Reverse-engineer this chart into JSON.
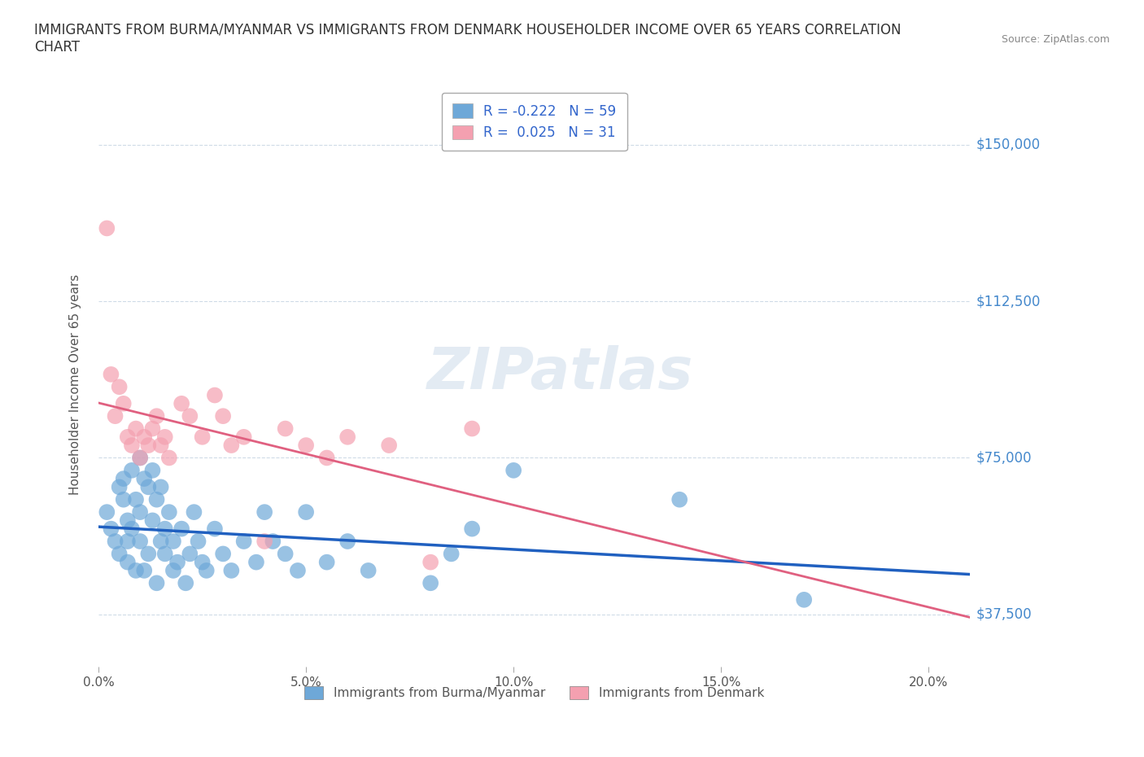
{
  "title": "IMMIGRANTS FROM BURMA/MYANMAR VS IMMIGRANTS FROM DENMARK HOUSEHOLDER INCOME OVER 65 YEARS CORRELATION\nCHART",
  "source": "Source: ZipAtlas.com",
  "xlabel": "",
  "ylabel": "Householder Income Over 65 years",
  "series1_label": "Immigrants from Burma/Myanmar",
  "series2_label": "Immigrants from Denmark",
  "series1_color": "#6ea8d8",
  "series2_color": "#f4a0b0",
  "series1_line_color": "#2060c0",
  "series2_line_color": "#e06080",
  "R1": -0.222,
  "N1": 59,
  "R2": 0.025,
  "N2": 31,
  "xlim": [
    0.0,
    0.21
  ],
  "ylim": [
    25000,
    160000
  ],
  "yticks": [
    37500,
    75000,
    112500,
    150000
  ],
  "xticks": [
    0.0,
    0.05,
    0.1,
    0.15,
    0.2
  ],
  "watermark": "ZIPatlas",
  "series1_x": [
    0.002,
    0.003,
    0.004,
    0.005,
    0.005,
    0.006,
    0.006,
    0.007,
    0.007,
    0.007,
    0.008,
    0.008,
    0.009,
    0.009,
    0.01,
    0.01,
    0.01,
    0.011,
    0.011,
    0.012,
    0.012,
    0.013,
    0.013,
    0.014,
    0.014,
    0.015,
    0.015,
    0.016,
    0.016,
    0.017,
    0.018,
    0.018,
    0.019,
    0.02,
    0.021,
    0.022,
    0.023,
    0.024,
    0.025,
    0.026,
    0.028,
    0.03,
    0.032,
    0.035,
    0.038,
    0.04,
    0.042,
    0.045,
    0.048,
    0.05,
    0.055,
    0.06,
    0.065,
    0.08,
    0.085,
    0.09,
    0.1,
    0.14,
    0.17
  ],
  "series1_y": [
    62000,
    58000,
    55000,
    68000,
    52000,
    70000,
    65000,
    60000,
    55000,
    50000,
    72000,
    58000,
    65000,
    48000,
    75000,
    62000,
    55000,
    70000,
    48000,
    68000,
    52000,
    72000,
    60000,
    65000,
    45000,
    68000,
    55000,
    58000,
    52000,
    62000,
    48000,
    55000,
    50000,
    58000,
    45000,
    52000,
    62000,
    55000,
    50000,
    48000,
    58000,
    52000,
    48000,
    55000,
    50000,
    62000,
    55000,
    52000,
    48000,
    62000,
    50000,
    55000,
    48000,
    45000,
    52000,
    58000,
    72000,
    65000,
    41000
  ],
  "series2_x": [
    0.002,
    0.003,
    0.004,
    0.005,
    0.006,
    0.007,
    0.008,
    0.009,
    0.01,
    0.011,
    0.012,
    0.013,
    0.014,
    0.015,
    0.016,
    0.017,
    0.02,
    0.022,
    0.025,
    0.028,
    0.03,
    0.032,
    0.035,
    0.04,
    0.045,
    0.05,
    0.055,
    0.06,
    0.07,
    0.08,
    0.09
  ],
  "series2_y": [
    130000,
    95000,
    85000,
    92000,
    88000,
    80000,
    78000,
    82000,
    75000,
    80000,
    78000,
    82000,
    85000,
    78000,
    80000,
    75000,
    88000,
    85000,
    80000,
    90000,
    85000,
    78000,
    80000,
    55000,
    82000,
    78000,
    75000,
    80000,
    78000,
    50000,
    82000
  ]
}
